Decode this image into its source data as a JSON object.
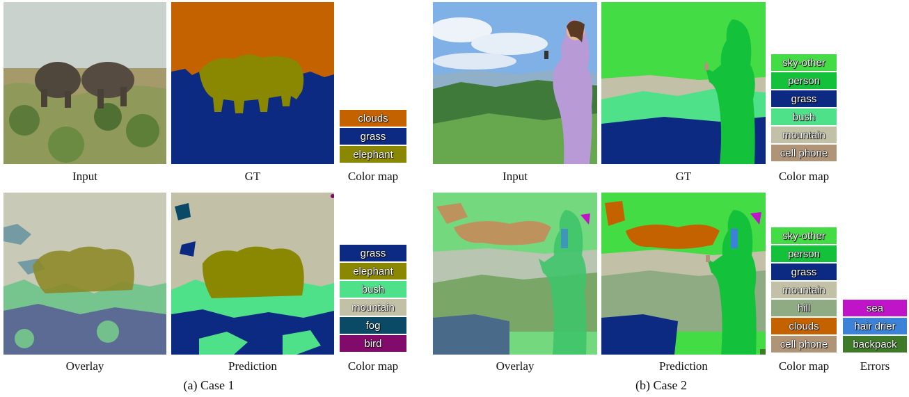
{
  "case1": {
    "label": "(a) Case 1",
    "captions": {
      "input": "Input",
      "gt": "GT",
      "cmap_top": "Color map",
      "overlay": "Overlay",
      "prediction": "Prediction",
      "cmap_bottom": "Color map"
    },
    "colormap_gt": [
      {
        "label": "clouds",
        "color": "#c46200"
      },
      {
        "label": "grass",
        "color": "#0c2a82"
      },
      {
        "label": "elephant",
        "color": "#8a8800"
      }
    ],
    "colormap_pred": [
      {
        "label": "grass",
        "color": "#0c2a82"
      },
      {
        "label": "elephant",
        "color": "#8a8800"
      },
      {
        "label": "bush",
        "color": "#4fe08a"
      },
      {
        "label": "mountain",
        "color": "#c2c0a6"
      },
      {
        "label": "fog",
        "color": "#0a4a66"
      },
      {
        "label": "bird",
        "color": "#820a6a"
      }
    ]
  },
  "case2": {
    "label": "(b) Case 2",
    "captions": {
      "input": "Input",
      "gt": "GT",
      "cmap_top": "Color map",
      "overlay": "Overlay",
      "prediction": "Prediction",
      "cmap_bottom": "Color map",
      "errors": "Errors"
    },
    "colormap_gt": [
      {
        "label": "sky-other",
        "color": "#44dc44"
      },
      {
        "label": "person",
        "color": "#13c23a"
      },
      {
        "label": "grass",
        "color": "#0c2a82"
      },
      {
        "label": "bush",
        "color": "#4fe08a"
      },
      {
        "label": "mountain",
        "color": "#c2c0a6"
      },
      {
        "label": "cell phone",
        "color": "#b09478"
      }
    ],
    "colormap_pred": [
      {
        "label": "sky-other",
        "color": "#44dc44"
      },
      {
        "label": "person",
        "color": "#13c23a"
      },
      {
        "label": "grass",
        "color": "#0c2a82"
      },
      {
        "label": "mountain",
        "color": "#c2c0a6"
      },
      {
        "label": "hill",
        "color": "#8eab84"
      },
      {
        "label": "clouds",
        "color": "#c46200"
      },
      {
        "label": "cell phone",
        "color": "#b09478"
      }
    ],
    "colormap_errors": [
      {
        "label": "sea",
        "color": "#c014c8"
      },
      {
        "label": "hair drier",
        "color": "#3c82d8"
      },
      {
        "label": "backpack",
        "color": "#3e7a28"
      }
    ]
  }
}
